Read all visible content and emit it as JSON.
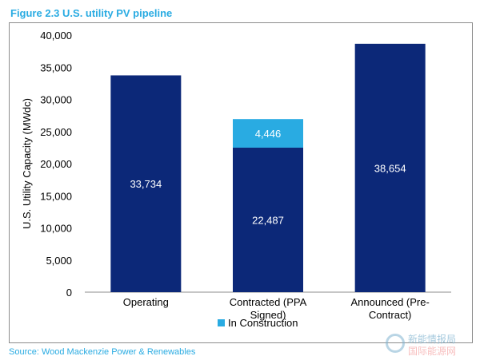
{
  "figure_title": "Figure 2.3 U.S. utility PV pipeline",
  "source": "Source: Wood Mackenzie Power & Renewables",
  "watermark": {
    "line1": "新能情报局",
    "line2": "国际能源网"
  },
  "colors": {
    "primary": "#0c2878",
    "construction": "#29abe2",
    "title": "#29abe2",
    "gridline": "#d9d9d9"
  },
  "chart_data": {
    "type": "bar",
    "stacked": true,
    "categories": [
      [
        "Operating"
      ],
      [
        "Contracted (PPA",
        "Signed)"
      ],
      [
        "Announced (Pre-",
        "Contract)"
      ]
    ],
    "series": [
      {
        "name": "",
        "color": "#0c2878",
        "values": [
          33734,
          22487,
          38654
        ],
        "labels": [
          "33,734",
          "22,487",
          "38,654"
        ]
      },
      {
        "name": "In Construction",
        "color": "#29abe2",
        "values": [
          0,
          4446,
          0
        ],
        "labels": [
          "",
          "4,446",
          ""
        ]
      }
    ],
    "ylabel": "U.S. Utility Capacity (MWdc)",
    "ylim": [
      0,
      40000
    ],
    "yticks": [
      0,
      5000,
      10000,
      15000,
      20000,
      25000,
      30000,
      35000,
      40000
    ],
    "ytick_labels": [
      "0",
      "5,000",
      "10,000",
      "15,000",
      "20,000",
      "25,000",
      "30,000",
      "35,000",
      "40,000"
    ],
    "legend": {
      "position": "bottom",
      "entries": [
        "In Construction"
      ]
    },
    "grid": false
  }
}
